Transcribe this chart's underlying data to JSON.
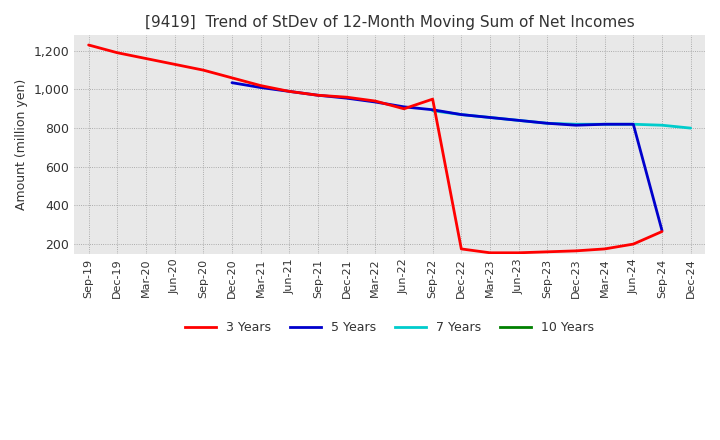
{
  "title": "[9419]  Trend of StDev of 12-Month Moving Sum of Net Incomes",
  "ylabel": "Amount (million yen)",
  "background_color": "#e8e8e8",
  "plot_bg_color": "#e8e8e8",
  "grid_color": "#999999",
  "ylim": [
    150,
    1280
  ],
  "yticks": [
    200,
    400,
    600,
    800,
    1000,
    1200
  ],
  "legend_labels": [
    "3 Years",
    "5 Years",
    "7 Years",
    "10 Years"
  ],
  "legend_colors": [
    "#ff0000",
    "#0000cc",
    "#00cccc",
    "#008000"
  ],
  "x_labels": [
    "Sep-19",
    "Dec-19",
    "Mar-20",
    "Jun-20",
    "Sep-20",
    "Dec-20",
    "Mar-21",
    "Jun-21",
    "Sep-21",
    "Dec-21",
    "Mar-22",
    "Jun-22",
    "Sep-22",
    "Dec-22",
    "Mar-23",
    "Jun-23",
    "Sep-23",
    "Dec-23",
    "Mar-24",
    "Jun-24",
    "Sep-24",
    "Dec-24"
  ],
  "series_3y": [
    1230,
    1190,
    1160,
    1130,
    1100,
    1060,
    1020,
    990,
    970,
    960,
    940,
    900,
    950,
    175,
    155,
    155,
    160,
    165,
    175,
    200,
    265,
    null
  ],
  "series_5y": [
    null,
    null,
    null,
    null,
    null,
    1035,
    1010,
    990,
    970,
    955,
    935,
    910,
    895,
    870,
    855,
    840,
    825,
    815,
    820,
    820,
    270,
    null
  ],
  "series_7y": [
    null,
    null,
    null,
    null,
    null,
    null,
    null,
    null,
    null,
    null,
    null,
    null,
    890,
    870,
    855,
    840,
    825,
    820,
    820,
    820,
    815,
    800
  ],
  "series_10y": [
    null,
    null,
    null,
    null,
    null,
    null,
    null,
    null,
    null,
    null,
    null,
    null,
    null,
    null,
    null,
    null,
    null,
    null,
    null,
    null,
    null,
    null
  ]
}
